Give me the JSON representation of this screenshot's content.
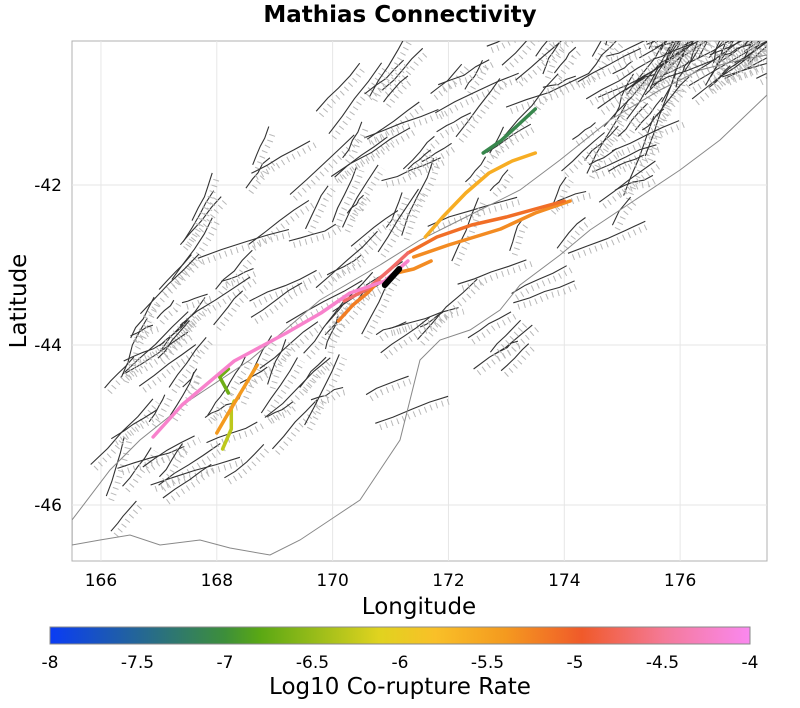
{
  "title": "Mathias Connectivity",
  "axes": {
    "xlabel": "Longitude",
    "ylabel": "Latitude",
    "x_ticks": [
      "166",
      "168",
      "170",
      "172",
      "174",
      "176"
    ],
    "y_ticks": [
      "-42",
      "-44",
      "-46"
    ],
    "xlim": [
      165.5,
      177.5
    ],
    "ylim": [
      -46.7,
      -40.2
    ],
    "grid": true
  },
  "colorbar": {
    "label": "Log10 Co-rupture Rate",
    "ticks": [
      "-8",
      "-7.5",
      "-7",
      "-6.5",
      "-6",
      "-5.5",
      "-5",
      "-4.5",
      "-4"
    ],
    "range": [
      -8,
      -4
    ],
    "colors": [
      "#0a3cf5",
      "#3d8f3a",
      "#5aa814",
      "#e0d31f",
      "#f9c028",
      "#f49a1f",
      "#f05a2a",
      "#f47a9a",
      "#fa88f0"
    ]
  },
  "legend_colors": {
    "source_fault": "#000000",
    "fault_trace": "#333333",
    "fault_surface": "#b8b8b8",
    "coastline": "#888888",
    "grid": "#e6e6e6"
  },
  "chart_data": {
    "type": "map",
    "title": "Mathias Connectivity",
    "xlabel": "Longitude",
    "ylabel": "Latitude",
    "xlim": [
      165.5,
      177.5
    ],
    "ylim": [
      -46.7,
      -40.2
    ],
    "colorbar_label": "Log10 Co-rupture Rate",
    "colorbar_range": [
      -8,
      -4
    ],
    "source_fault": [
      [
        170.9,
        -43.25
      ],
      [
        171.15,
        -43.05
      ]
    ],
    "colored_ruptures": [
      {
        "rate": -4.2,
        "path": [
          [
            166.9,
            -45.15
          ],
          [
            167.4,
            -44.75
          ],
          [
            168.3,
            -44.2
          ],
          [
            169.2,
            -43.85
          ],
          [
            169.8,
            -43.6
          ],
          [
            170.3,
            -43.35
          ],
          [
            170.9,
            -43.2
          ],
          [
            171.3,
            -42.95
          ]
        ]
      },
      {
        "rate": -4.7,
        "path": [
          [
            170.2,
            -43.45
          ],
          [
            170.6,
            -43.3
          ],
          [
            171.0,
            -43.05
          ],
          [
            171.3,
            -42.85
          ]
        ]
      },
      {
        "rate": -5.1,
        "path": [
          [
            171.3,
            -42.85
          ],
          [
            171.8,
            -42.65
          ],
          [
            172.4,
            -42.5
          ],
          [
            173.0,
            -42.4
          ],
          [
            174.0,
            -42.2
          ]
        ]
      },
      {
        "rate": -5.3,
        "path": [
          [
            171.4,
            -42.9
          ],
          [
            172.0,
            -42.75
          ],
          [
            172.9,
            -42.55
          ],
          [
            173.5,
            -42.35
          ],
          [
            174.1,
            -42.2
          ]
        ]
      },
      {
        "rate": -5.6,
        "path": [
          [
            171.6,
            -42.65
          ],
          [
            171.9,
            -42.4
          ],
          [
            172.3,
            -42.1
          ],
          [
            172.7,
            -41.85
          ],
          [
            173.1,
            -41.7
          ],
          [
            173.5,
            -41.6
          ]
        ]
      },
      {
        "rate": -7.1,
        "path": [
          [
            172.6,
            -41.6
          ],
          [
            172.9,
            -41.45
          ],
          [
            173.2,
            -41.25
          ],
          [
            173.5,
            -41.05
          ]
        ]
      },
      {
        "rate": -5.3,
        "path": [
          [
            171.1,
            -43.1
          ],
          [
            171.4,
            -43.05
          ],
          [
            171.7,
            -42.95
          ]
        ]
      },
      {
        "rate": -5.2,
        "path": [
          [
            170.1,
            -43.7
          ],
          [
            170.35,
            -43.5
          ],
          [
            170.6,
            -43.35
          ],
          [
            170.8,
            -43.2
          ]
        ]
      },
      {
        "rate": -5.4,
        "path": [
          [
            168.0,
            -45.1
          ],
          [
            168.2,
            -44.85
          ],
          [
            168.45,
            -44.55
          ],
          [
            168.7,
            -44.25
          ]
        ]
      },
      {
        "rate": -6.3,
        "path": [
          [
            168.1,
            -45.3
          ],
          [
            168.25,
            -45.05
          ],
          [
            168.25,
            -44.8
          ],
          [
            168.3,
            -44.7
          ]
        ]
      },
      {
        "rate": -6.7,
        "path": [
          [
            168.2,
            -44.6
          ],
          [
            168.05,
            -44.4
          ],
          [
            168.2,
            -44.3
          ]
        ]
      }
    ]
  }
}
